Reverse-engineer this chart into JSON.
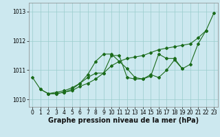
{
  "xlabel": "Graphe pression niveau de la mer (hPa)",
  "bg_color": "#cce8ef",
  "grid_color": "#99cccc",
  "line_color": "#1a6b1a",
  "marker_color": "#1a6b1a",
  "x": [
    0,
    1,
    2,
    3,
    4,
    5,
    6,
    7,
    8,
    9,
    10,
    11,
    12,
    13,
    14,
    15,
    16,
    17,
    18,
    19,
    20,
    21,
    22,
    23
  ],
  "series1": [
    1010.75,
    1010.35,
    1010.2,
    1010.2,
    1010.25,
    1010.3,
    1010.45,
    1010.55,
    1010.7,
    1010.9,
    1011.15,
    1011.3,
    1011.4,
    1011.45,
    1011.5,
    1011.6,
    1011.7,
    1011.75,
    1011.8,
    1011.85,
    1011.9,
    1012.1,
    1012.35,
    1012.95
  ],
  "series2": [
    null,
    1010.35,
    1010.2,
    1010.2,
    1010.25,
    1010.35,
    1010.55,
    1010.85,
    1011.3,
    1011.55,
    1011.55,
    1011.3,
    1011.05,
    1010.75,
    1010.7,
    1010.8,
    1011.55,
    1011.4,
    1011.4,
    1011.05,
    1011.2,
    1011.9,
    1012.35,
    null
  ],
  "series3": [
    null,
    null,
    1010.2,
    1010.25,
    1010.3,
    1010.4,
    1010.55,
    1010.75,
    1010.9,
    1010.9,
    1011.5,
    1011.5,
    1010.75,
    1010.7,
    1010.7,
    1010.85,
    1010.75,
    1011.0,
    1011.35,
    1011.05,
    null,
    null,
    null,
    null
  ],
  "ylim": [
    1009.75,
    1013.3
  ],
  "yticks": [
    1010,
    1011,
    1012,
    1013
  ],
  "xticks": [
    0,
    1,
    2,
    3,
    4,
    5,
    6,
    7,
    8,
    9,
    10,
    11,
    12,
    13,
    14,
    15,
    16,
    17,
    18,
    19,
    20,
    21,
    22,
    23
  ],
  "tick_fontsize": 5.5,
  "xlabel_fontsize": 7
}
